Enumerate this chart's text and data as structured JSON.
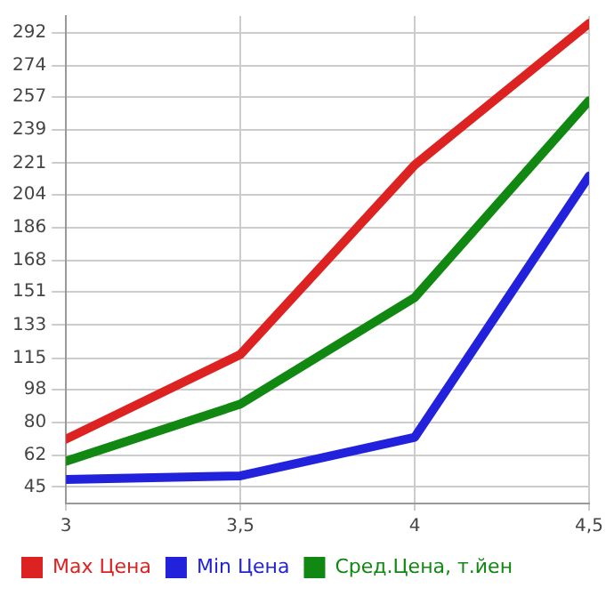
{
  "chart_data": {
    "type": "line",
    "x": [
      3,
      3.5,
      4,
      4.5
    ],
    "xlim": [
      3,
      4.5
    ],
    "xticks": [
      3,
      {
        "value": 3.5,
        "label": "3,5"
      },
      4,
      {
        "value": 4.5,
        "label": "4,5"
      }
    ],
    "ylim": [
      36,
      301
    ],
    "yticks": [
      45,
      62,
      80,
      98,
      115,
      133,
      151,
      168,
      186,
      204,
      221,
      239,
      257,
      274,
      292
    ],
    "grid": true,
    "legend": "bottom",
    "marker": "none",
    "line_style": "solid",
    "series": [
      {
        "name": "Max Цена",
        "color": "#dd2222",
        "values": [
          71,
          117,
          220,
          297
        ]
      },
      {
        "name": "Min Цена",
        "color": "#2222dd",
        "values": [
          49,
          51,
          72,
          214
        ]
      },
      {
        "name": "Сред.Цена, т.йен",
        "color": "#118811",
        "values": [
          59,
          90,
          148,
          255
        ]
      }
    ]
  }
}
